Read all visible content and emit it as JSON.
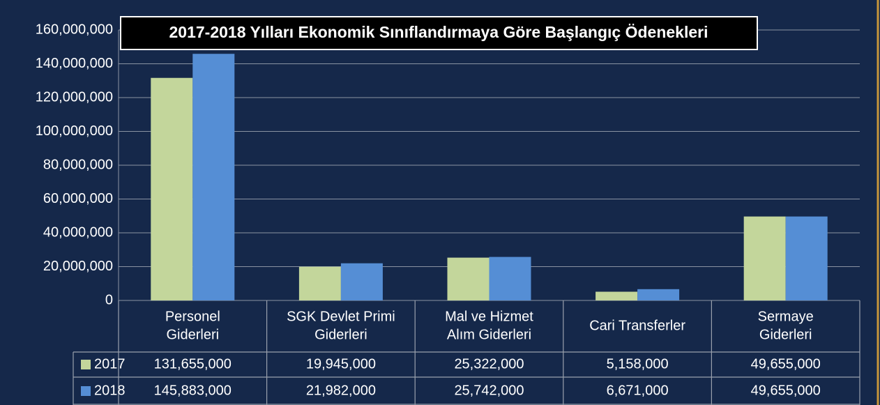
{
  "chart_data": {
    "type": "bar",
    "title": "2017-2018 Yılları Ekonomik Sınıflandırmaya Göre Başlangıç Ödenekleri",
    "categories": [
      [
        "Personel",
        "Giderleri"
      ],
      [
        "SGK Devlet Primi",
        "Giderleri"
      ],
      [
        "Mal ve Hizmet",
        "Alım Giderleri"
      ],
      [
        "Cari Transferler"
      ],
      [
        "Sermaye",
        "Giderleri"
      ]
    ],
    "series": [
      {
        "name": "2017",
        "color": "#c3d69b",
        "values": [
          131655000,
          19945000,
          25322000,
          5158000,
          49655000
        ],
        "value_labels": [
          "131,655,000",
          "19,945,000",
          "25,322,000",
          "5,158,000",
          "49,655,000"
        ]
      },
      {
        "name": "2018",
        "color": "#558ed5",
        "values": [
          145883000,
          21982000,
          25742000,
          6671000,
          49655000
        ],
        "value_labels": [
          "145,883,000",
          "21,982,000",
          "25,742,000",
          "6,671,000",
          "49,655,000"
        ]
      }
    ],
    "ylim": [
      0,
      160000000
    ],
    "yticks": [
      0,
      {
        "value": 20000000,
        "label": "20,000,000"
      },
      {
        "value": 40000000,
        "label": "40,000,000"
      },
      {
        "value": 60000000,
        "label": "60,000,000"
      },
      {
        "value": 80000000,
        "label": "80,000,000"
      },
      {
        "value": 100000000,
        "label": "100,000,000"
      },
      {
        "value": 120000000,
        "label": "120,000,000"
      },
      {
        "value": 140000000,
        "label": "140,000,000"
      },
      {
        "value": 160000000,
        "label": "160,000,000"
      }
    ],
    "grid": true
  }
}
